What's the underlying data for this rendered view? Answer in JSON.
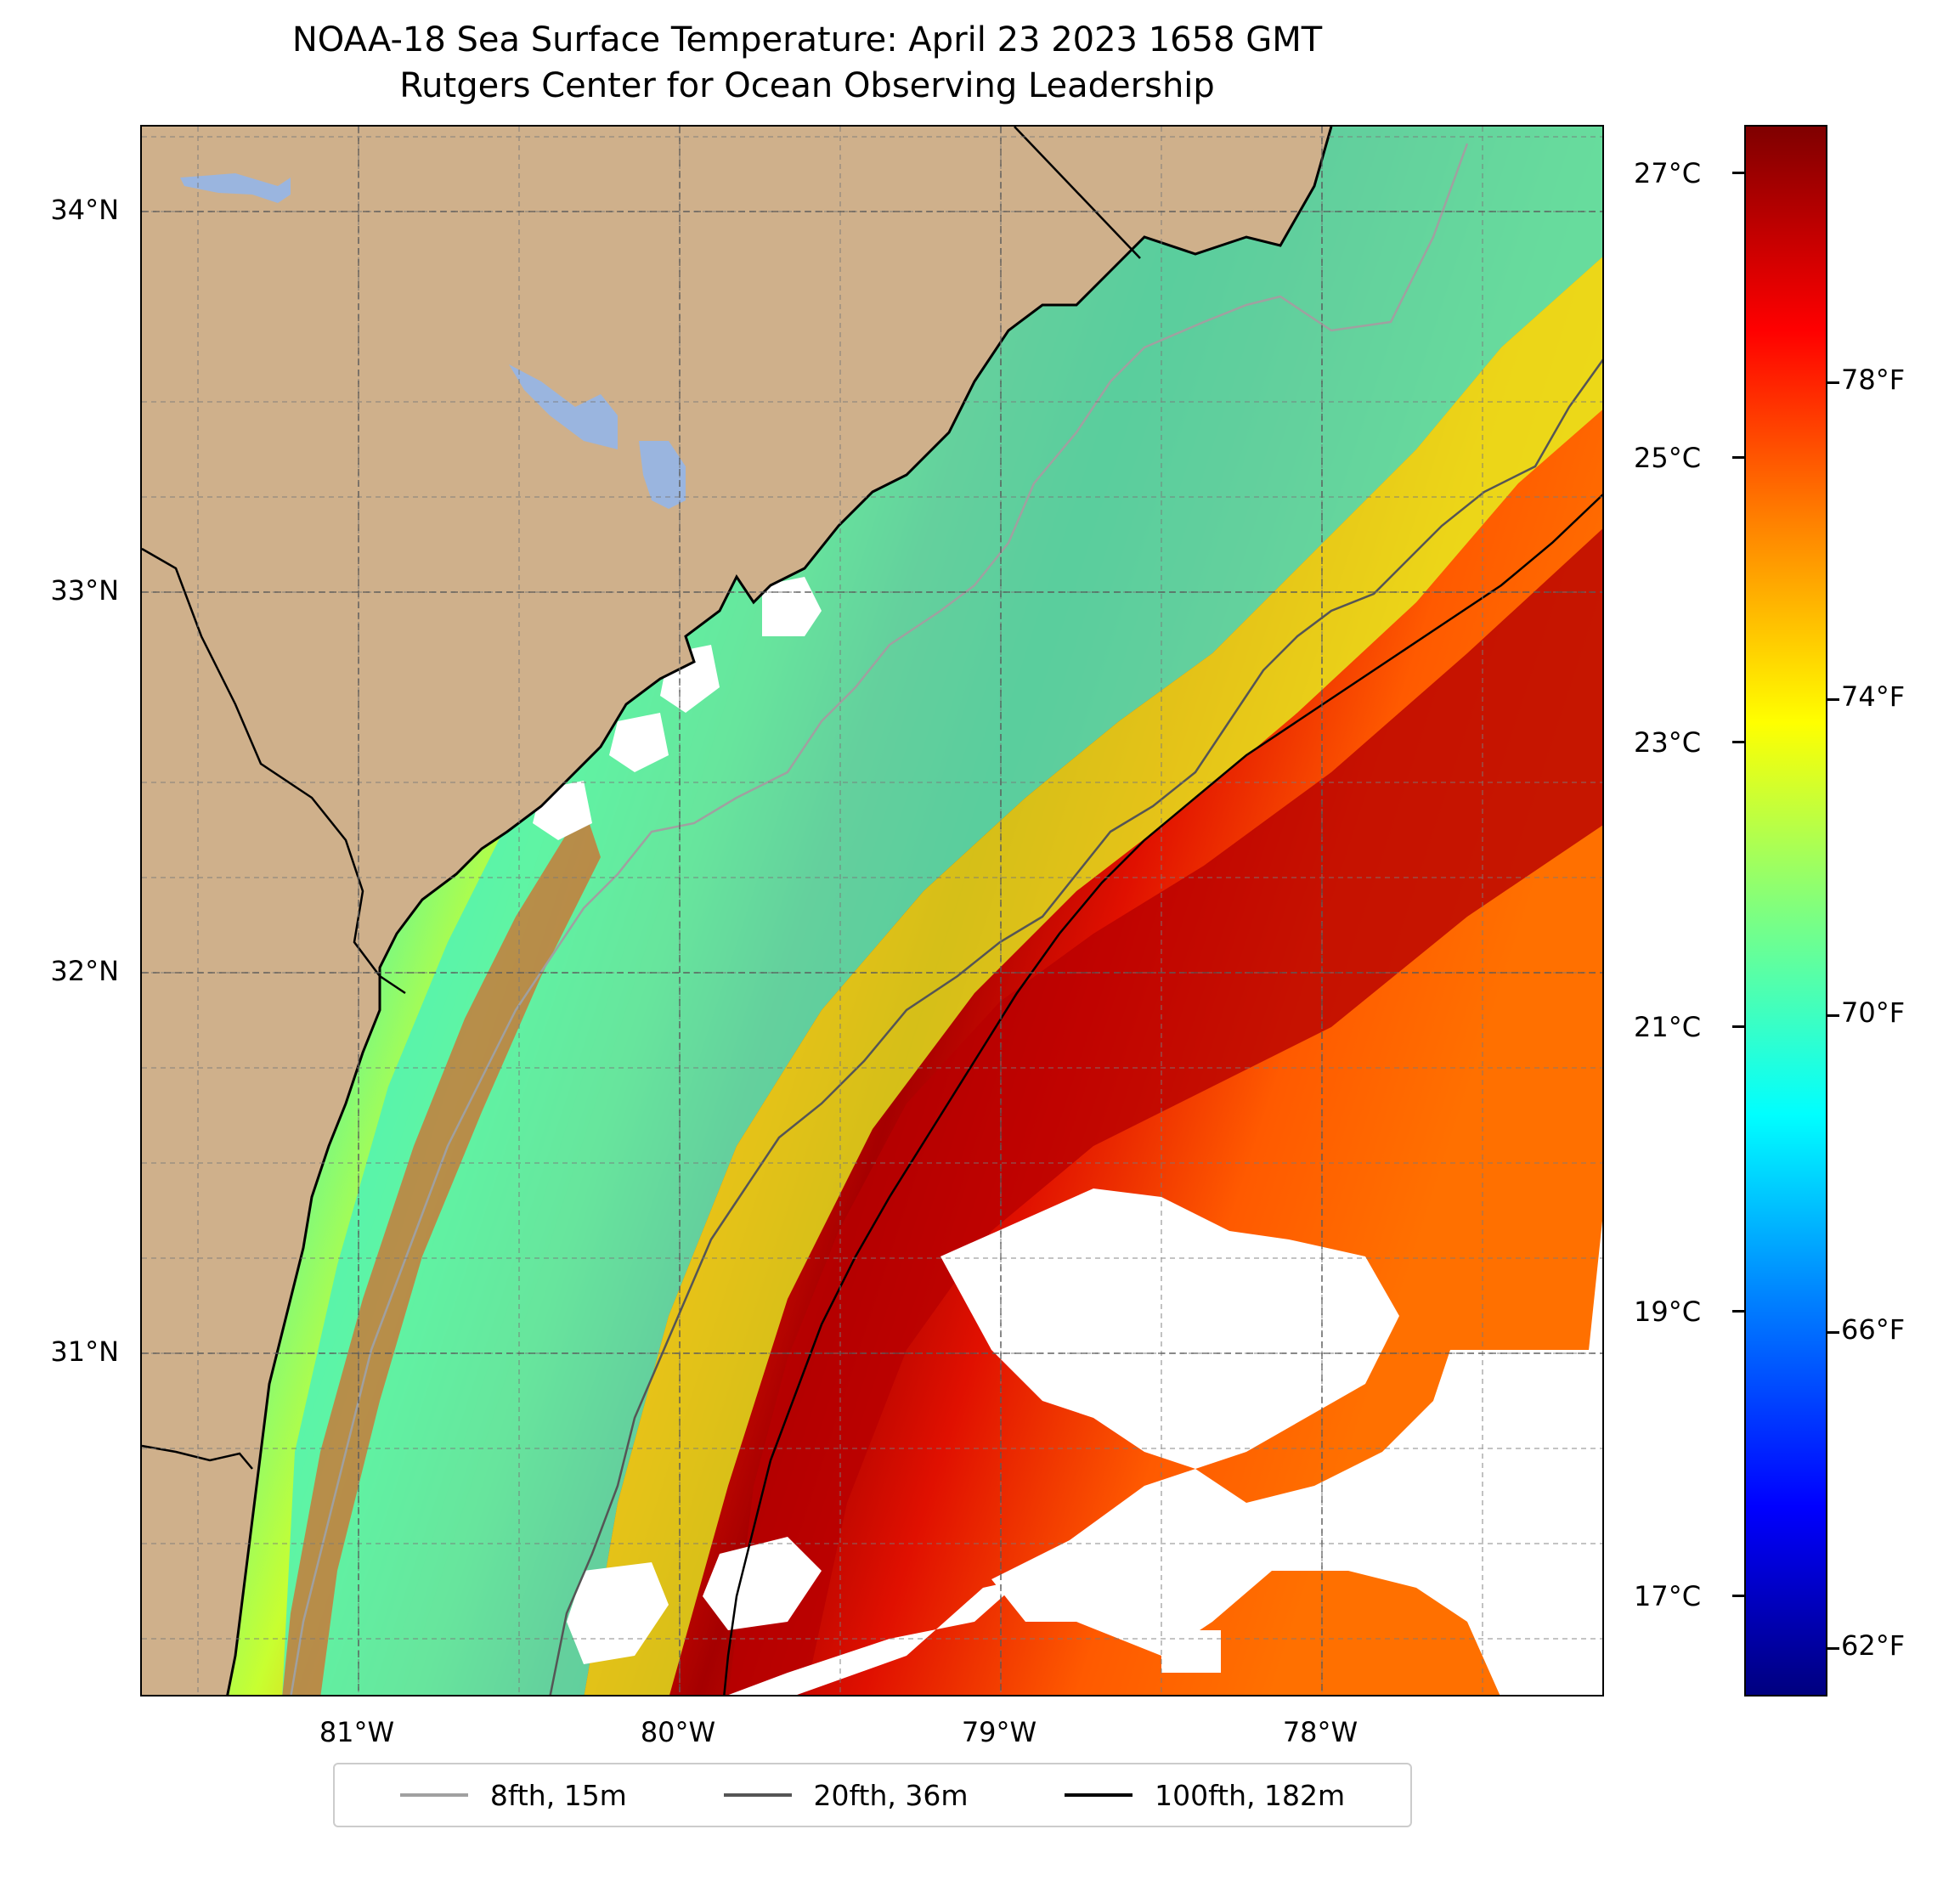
{
  "title": {
    "line1": "NOAA-18 Sea Surface Temperature: April 23 2023 1658 GMT",
    "line2": "Rutgers Center for Ocean Observing Leadership"
  },
  "map": {
    "x_ticks": [
      "81°W",
      "80°W",
      "79°W",
      "78°W"
    ],
    "y_ticks": [
      "34°N",
      "33°N",
      "32°N",
      "31°N"
    ],
    "colors": {
      "land": "#cfb08b",
      "lake": "#9ab5df",
      "coast": "#000000",
      "no_data": "#ffffff"
    }
  },
  "colorbar": {
    "celsius_ticks": [
      "27°C",
      "25°C",
      "23°C",
      "21°C",
      "19°C",
      "17°C"
    ],
    "fahrenheit_ticks": [
      "78°F",
      "74°F",
      "70°F",
      "66°F",
      "62°F"
    ],
    "colormap": "jet"
  },
  "legend": {
    "items": [
      {
        "label": "8fth, 15m",
        "color": "#a0a0a0"
      },
      {
        "label": "20fth, 36m",
        "color": "#555555"
      },
      {
        "label": "100fth, 182m",
        "color": "#000000"
      }
    ]
  }
}
